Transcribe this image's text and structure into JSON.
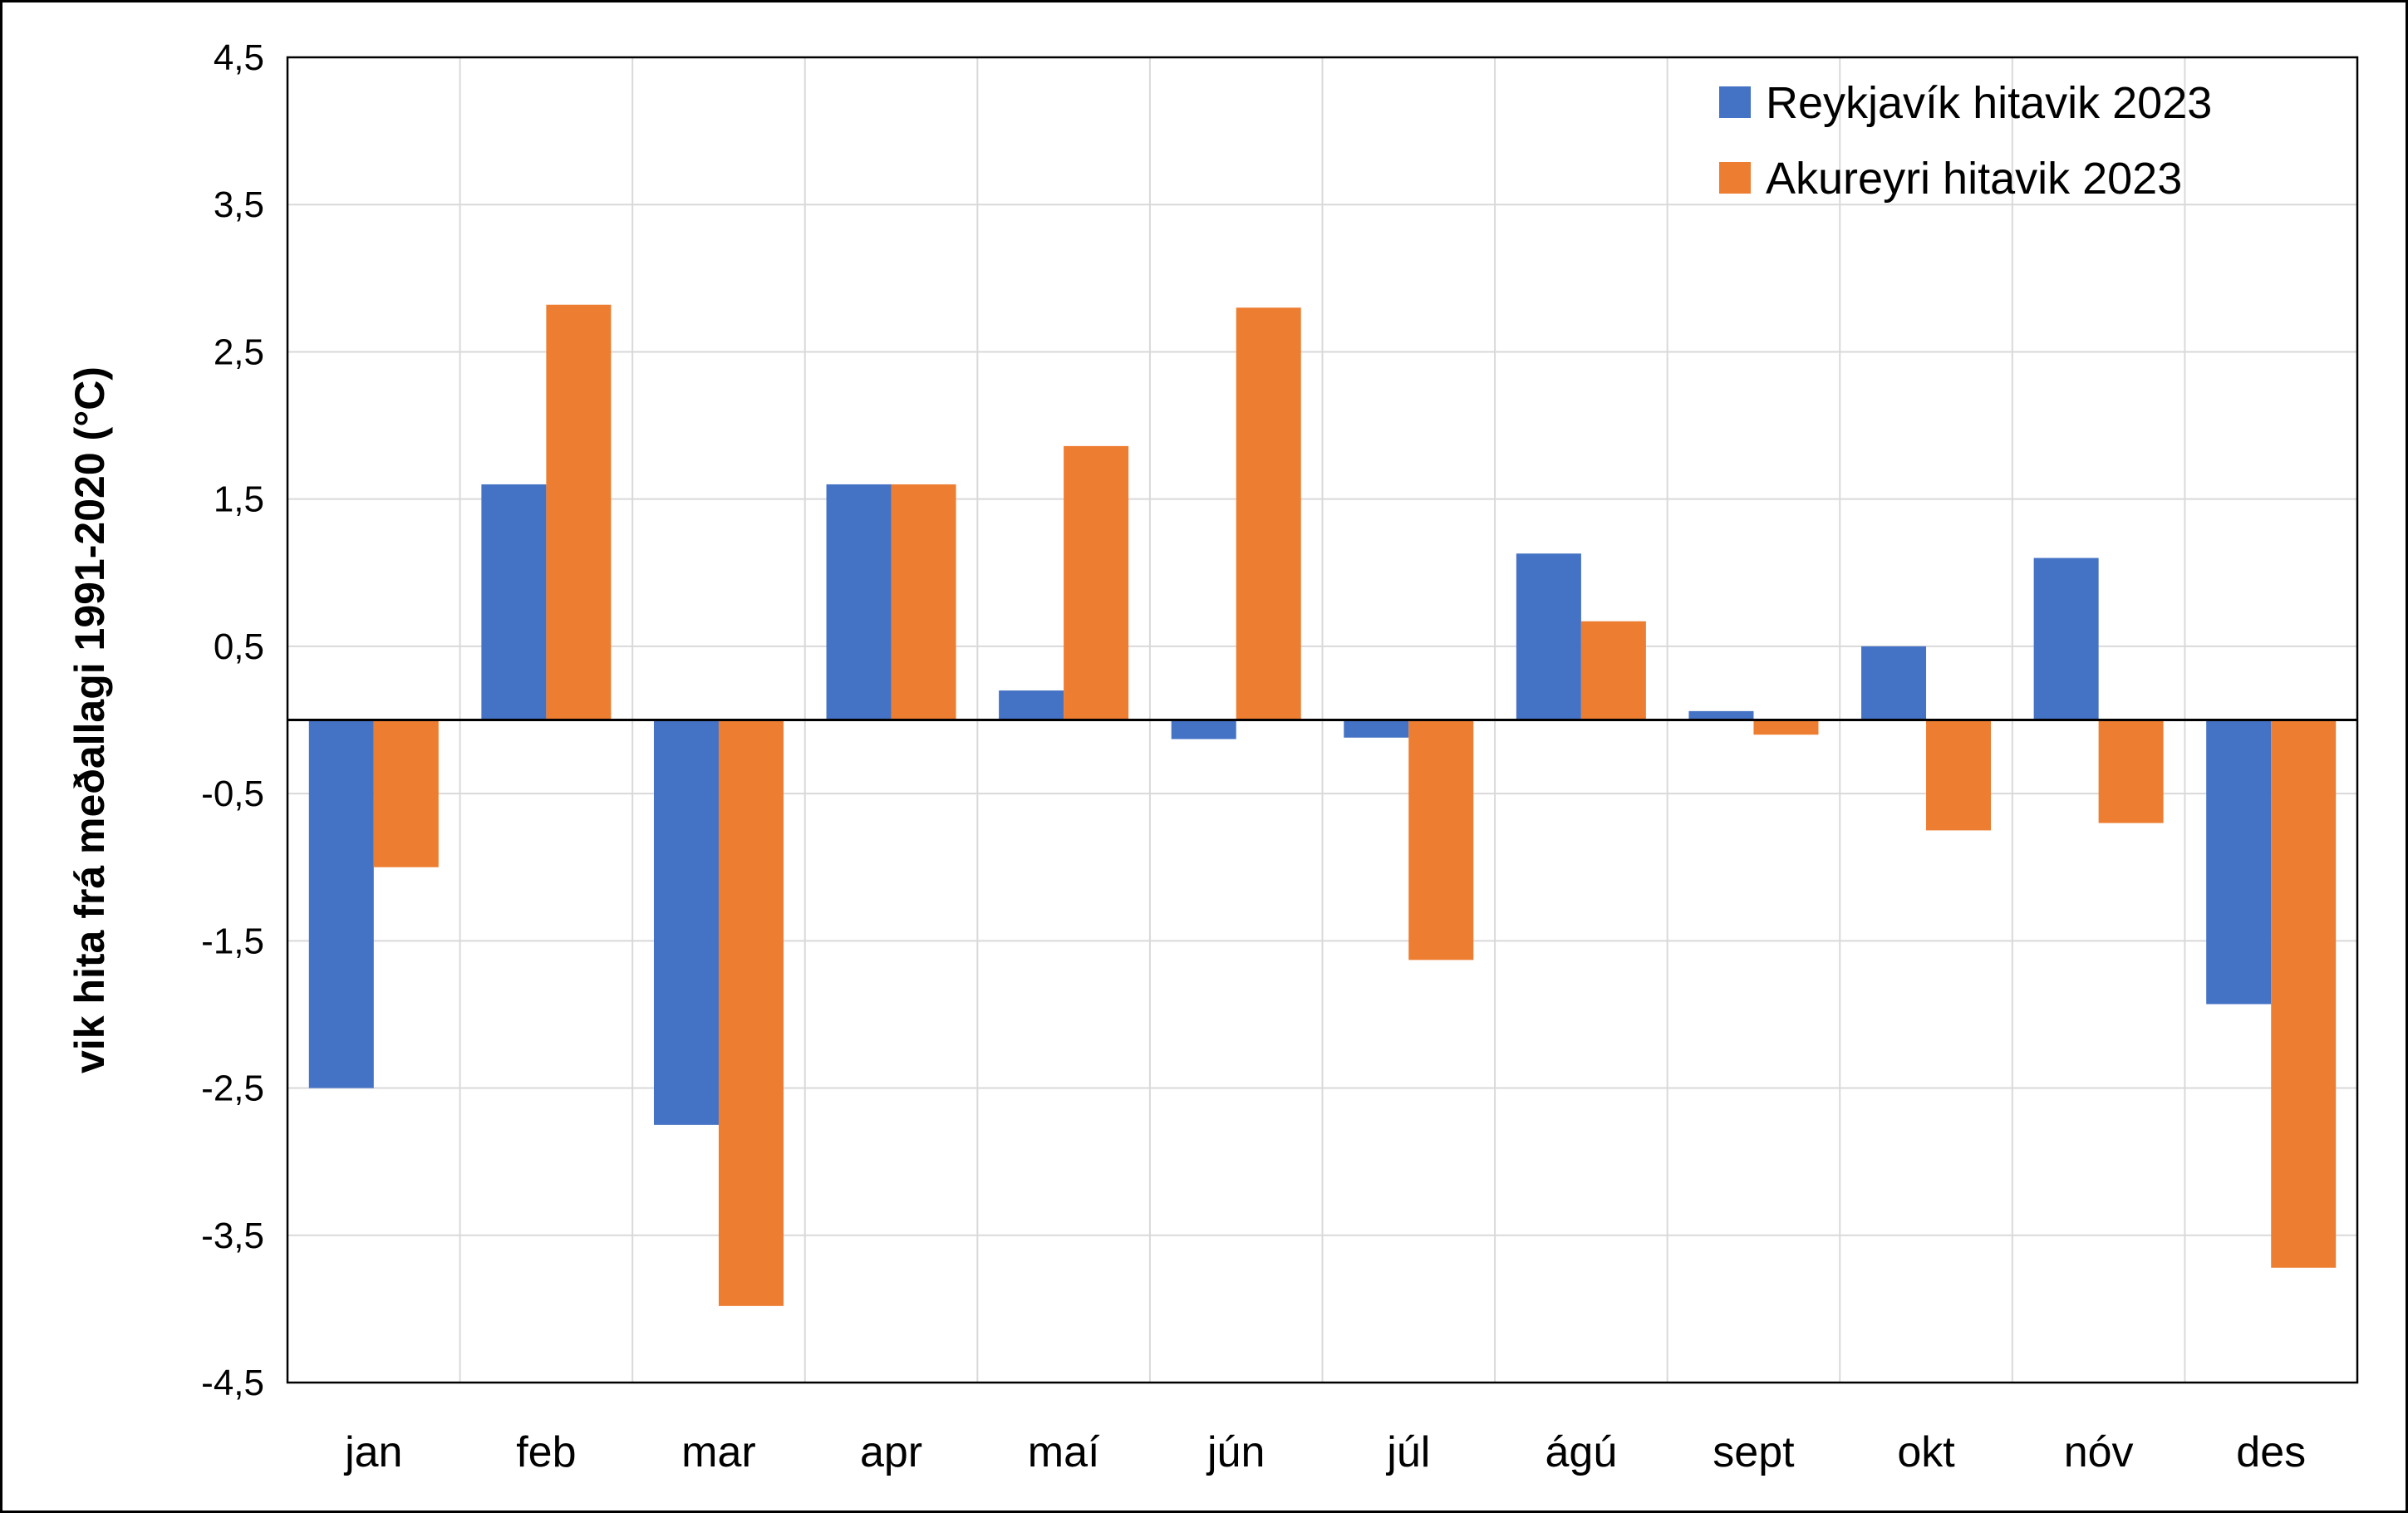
{
  "chart_data": {
    "type": "bar",
    "title": "",
    "xlabel": "",
    "ylabel": "vik hita frá meðallagi 1991-2020 (°C)",
    "ylim": [
      -4.5,
      4.5
    ],
    "yticks": [
      4.5,
      3.5,
      2.5,
      1.5,
      0.5,
      -0.5,
      -1.5,
      -2.5,
      -3.5,
      -4.5
    ],
    "ytick_labels": [
      "4,5",
      "3,5",
      "2,5",
      "1,5",
      "0,5",
      "-0,5",
      "-1,5",
      "-2,5",
      "-3,5",
      "-4,5"
    ],
    "grid": true,
    "legend_position": "top-right",
    "categories": [
      "jan",
      "feb",
      "mar",
      "apr",
      "maí",
      "jún",
      "júl",
      "ágú",
      "sept",
      "okt",
      "nóv",
      "des"
    ],
    "series": [
      {
        "name": "Reykjavík hitavik 2023",
        "color": "#4472C4",
        "values": [
          -2.5,
          1.6,
          -2.75,
          1.6,
          0.2,
          -0.13,
          -0.12,
          1.13,
          0.06,
          0.5,
          1.1,
          -1.93
        ]
      },
      {
        "name": "Akureyri hitavik 2023",
        "color": "#ED7D31",
        "values": [
          -1.0,
          2.82,
          -3.98,
          1.6,
          1.86,
          2.8,
          -1.63,
          0.67,
          -0.1,
          -0.75,
          -0.7,
          -3.72
        ]
      }
    ]
  }
}
